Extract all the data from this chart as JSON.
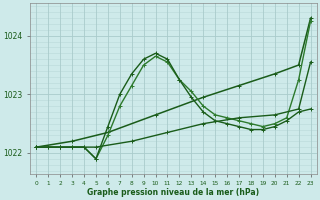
{
  "xlabel": "Graphe pression niveau de la mer (hPa)",
  "background_color": "#ceeaea",
  "grid_color": "#aacccc",
  "line_color_dark": "#1a5c1a",
  "x_ticks": [
    0,
    1,
    2,
    3,
    4,
    5,
    6,
    7,
    8,
    9,
    10,
    11,
    12,
    13,
    14,
    15,
    16,
    17,
    18,
    19,
    20,
    21,
    22,
    23
  ],
  "ylim": [
    1021.65,
    1024.55
  ],
  "yticks": [
    1022,
    1023,
    1024
  ],
  "series": [
    {
      "x": [
        0,
        3,
        6,
        10,
        14,
        17,
        20,
        22,
        23
      ],
      "y": [
        1022.1,
        1022.2,
        1022.35,
        1022.65,
        1022.95,
        1023.15,
        1023.35,
        1023.5,
        1024.3
      ],
      "color": "#1a5c1a",
      "linewidth": 1.1,
      "marker": "+"
    },
    {
      "x": [
        0,
        1,
        2,
        3,
        4,
        5,
        6,
        7,
        8,
        9,
        10,
        11,
        12,
        13,
        14,
        15,
        16,
        17,
        18,
        19,
        20,
        21,
        22,
        23
      ],
      "y": [
        1022.1,
        1022.1,
        1022.1,
        1022.1,
        1022.1,
        1021.9,
        1022.3,
        1022.8,
        1023.15,
        1023.5,
        1023.65,
        1023.55,
        1023.25,
        1023.05,
        1022.8,
        1022.65,
        1022.6,
        1022.55,
        1022.5,
        1022.45,
        1022.5,
        1022.6,
        1023.25,
        1024.25
      ],
      "color": "#2d7a2d",
      "linewidth": 1.0,
      "marker": "+"
    },
    {
      "x": [
        0,
        1,
        2,
        3,
        4,
        5,
        6,
        7,
        8,
        9,
        10,
        11,
        12,
        13,
        14,
        15,
        16,
        17,
        18,
        19,
        20,
        21,
        22,
        23
      ],
      "y": [
        1022.1,
        1022.1,
        1022.1,
        1022.1,
        1022.1,
        1021.9,
        1022.45,
        1023.0,
        1023.35,
        1023.6,
        1023.7,
        1023.6,
        1023.25,
        1022.95,
        1022.7,
        1022.55,
        1022.5,
        1022.45,
        1022.4,
        1022.4,
        1022.45,
        1022.55,
        1022.7,
        1022.75
      ],
      "color": "#1a5c1a",
      "linewidth": 1.0,
      "marker": "+"
    },
    {
      "x": [
        0,
        2,
        5,
        8,
        11,
        14,
        17,
        20,
        22,
        23
      ],
      "y": [
        1022.1,
        1022.1,
        1022.1,
        1022.2,
        1022.35,
        1022.5,
        1022.6,
        1022.65,
        1022.75,
        1023.55
      ],
      "color": "#1a5c1a",
      "linewidth": 1.0,
      "marker": "+"
    }
  ]
}
